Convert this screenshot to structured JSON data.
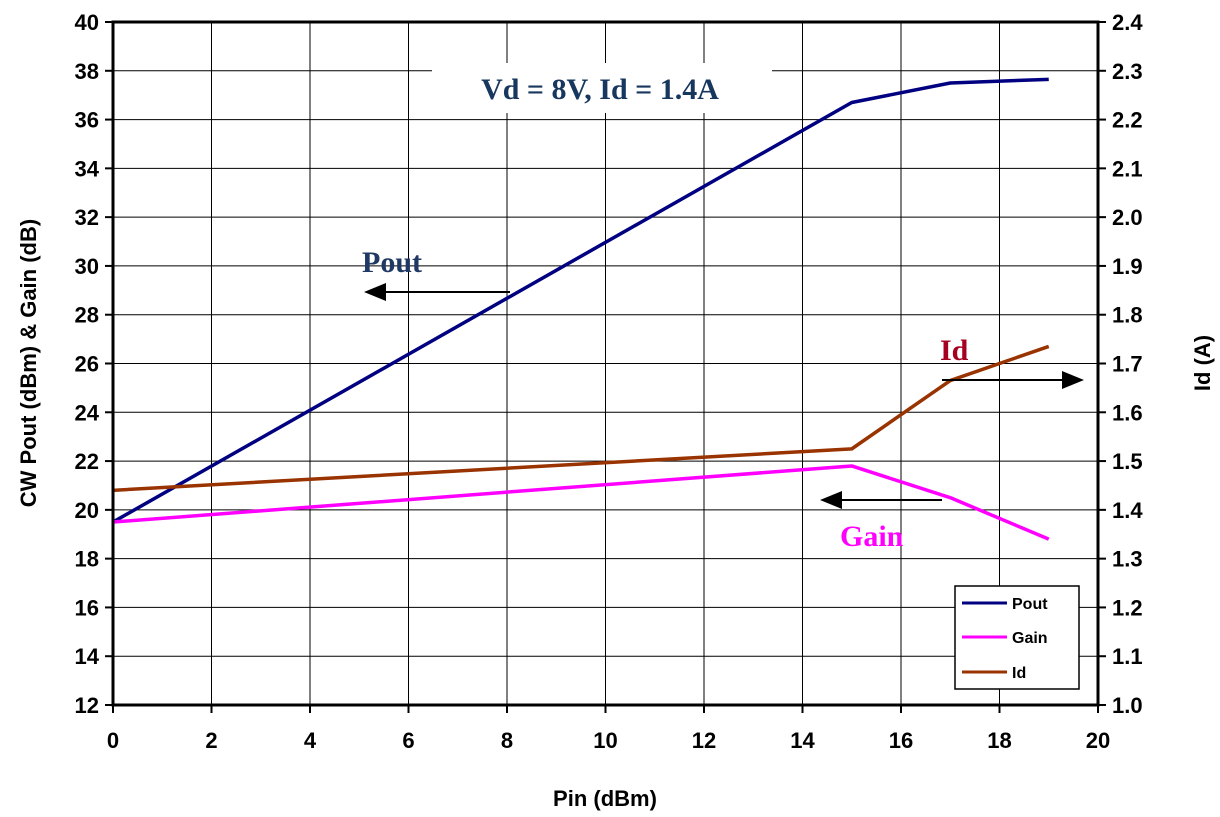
{
  "chart_data": {
    "type": "line",
    "x_label": "Pin (dBm)",
    "y_left_label": "CW Pout (dBm) & Gain (dB)",
    "y_right_label": "Id  (A)",
    "x_range": [
      0,
      20
    ],
    "y_left_range": [
      12,
      40
    ],
    "y_right_range": [
      1.0,
      2.4
    ],
    "x_ticks": [
      "0",
      "2",
      "4",
      "6",
      "8",
      "10",
      "12",
      "14",
      "16",
      "18",
      "20"
    ],
    "y_left_ticks": [
      "12",
      "14",
      "16",
      "18",
      "20",
      "22",
      "24",
      "26",
      "28",
      "30",
      "32",
      "34",
      "36",
      "38",
      "40"
    ],
    "y_right_ticks": [
      "1.0",
      "1.1",
      "1.2",
      "1.3",
      "1.4",
      "1.5",
      "1.6",
      "1.7",
      "1.8",
      "1.9",
      "2.0",
      "2.1",
      "2.2",
      "2.3",
      "2.4"
    ],
    "grid": true,
    "legend_position": "bottom-right",
    "series": [
      {
        "name": "Pout",
        "axis": "left",
        "color": "#000080",
        "x": [
          0,
          15,
          17,
          19
        ],
        "y": [
          19.5,
          36.7,
          37.5,
          37.65
        ]
      },
      {
        "name": "Gain",
        "axis": "left",
        "color": "#ff00ff",
        "x": [
          0,
          15,
          17,
          19
        ],
        "y": [
          19.5,
          21.8,
          20.5,
          18.8
        ]
      },
      {
        "name": "Id",
        "axis": "right",
        "color": "#993300",
        "x": [
          0,
          15,
          17,
          19
        ],
        "y": [
          1.44,
          1.525,
          1.665,
          1.735
        ]
      }
    ],
    "annotations": {
      "condition": {
        "text": "Vd = 8V, Id = 1.4A",
        "color": "#17375e"
      },
      "pout": {
        "text": "Pout",
        "color": "#1f3864"
      },
      "gain": {
        "text": "Gain",
        "color": "#ff00ff"
      },
      "id": {
        "text": "Id",
        "color": "#a50021"
      }
    }
  }
}
